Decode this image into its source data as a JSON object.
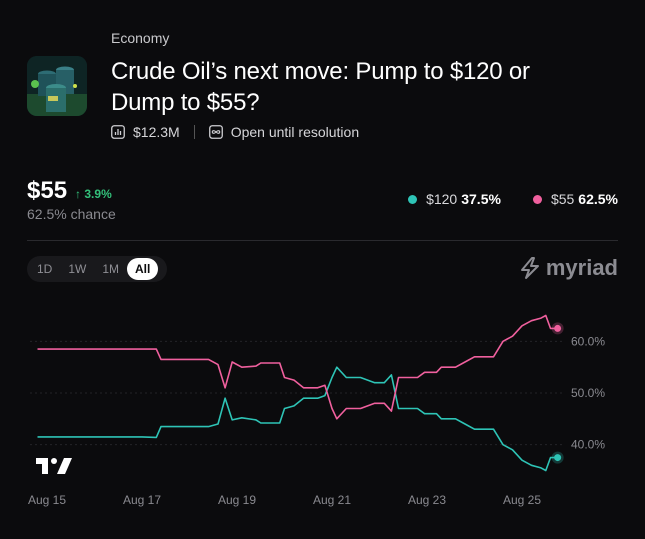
{
  "header": {
    "category": "Economy",
    "title": "Crude Oil’s next move: Pump to $120 or Dump to $55?",
    "volume": "$12.3M",
    "status": "Open until resolution"
  },
  "price": {
    "value": "$55",
    "change": "↑ 3.9%",
    "chance": "62.5% chance"
  },
  "legend": [
    {
      "label": "$120",
      "pct": "37.5%",
      "color": "#2ec4b6"
    },
    {
      "label": "$55",
      "pct": "62.5%",
      "color": "#f0609e"
    }
  ],
  "ranges": [
    "1D",
    "1W",
    "1M",
    "All"
  ],
  "active_range": "All",
  "brand": "myriad",
  "chart_data": {
    "type": "line",
    "x_labels": [
      "Aug 15",
      "Aug 17",
      "Aug 19",
      "Aug 21",
      "Aug 23",
      "Aug 25"
    ],
    "x_range": [
      15,
      25.75
    ],
    "ylim": [
      32,
      68
    ],
    "y_ticks": [
      "60.0%",
      "50.0%",
      "40.0%"
    ],
    "y_tick_values": [
      60,
      50,
      40
    ],
    "series": [
      {
        "name": "$120",
        "color": "#2ec4b6",
        "points": [
          [
            14.8,
            41.5
          ],
          [
            17.0,
            41.5
          ],
          [
            17.3,
            41.4
          ],
          [
            17.4,
            43.5
          ],
          [
            18.4,
            43.5
          ],
          [
            18.6,
            44
          ],
          [
            18.75,
            49
          ],
          [
            18.9,
            44.8
          ],
          [
            19.1,
            45.2
          ],
          [
            19.4,
            44.8
          ],
          [
            19.5,
            44.2
          ],
          [
            19.9,
            44.2
          ],
          [
            20.0,
            47
          ],
          [
            20.2,
            47.5
          ],
          [
            20.4,
            49
          ],
          [
            20.7,
            49
          ],
          [
            20.85,
            49.5
          ],
          [
            21.0,
            53
          ],
          [
            21.1,
            55
          ],
          [
            21.3,
            53
          ],
          [
            21.6,
            53
          ],
          [
            21.9,
            52
          ],
          [
            22.1,
            52
          ],
          [
            22.25,
            53.5
          ],
          [
            22.4,
            47
          ],
          [
            22.8,
            47
          ],
          [
            22.95,
            46
          ],
          [
            23.2,
            46
          ],
          [
            23.3,
            45
          ],
          [
            23.6,
            45
          ],
          [
            23.8,
            44
          ],
          [
            24.0,
            43
          ],
          [
            24.4,
            43
          ],
          [
            24.6,
            40
          ],
          [
            24.8,
            39
          ],
          [
            25.0,
            37
          ],
          [
            25.2,
            36
          ],
          [
            25.4,
            35.5
          ],
          [
            25.5,
            35
          ],
          [
            25.6,
            37.5
          ],
          [
            25.75,
            37.5
          ]
        ]
      },
      {
        "name": "$55",
        "color": "#f0609e",
        "points": [
          [
            14.8,
            58.5
          ],
          [
            17.0,
            58.5
          ],
          [
            17.3,
            58.5
          ],
          [
            17.4,
            56.5
          ],
          [
            18.4,
            56.5
          ],
          [
            18.6,
            55.5
          ],
          [
            18.75,
            51
          ],
          [
            18.9,
            56
          ],
          [
            19.1,
            55
          ],
          [
            19.4,
            55.2
          ],
          [
            19.5,
            55.8
          ],
          [
            19.9,
            55.8
          ],
          [
            20.0,
            53
          ],
          [
            20.2,
            52.5
          ],
          [
            20.4,
            51
          ],
          [
            20.7,
            51
          ],
          [
            20.85,
            51.5
          ],
          [
            21.0,
            47
          ],
          [
            21.1,
            45
          ],
          [
            21.3,
            47
          ],
          [
            21.6,
            47
          ],
          [
            21.9,
            48
          ],
          [
            22.1,
            48
          ],
          [
            22.25,
            46.5
          ],
          [
            22.4,
            53
          ],
          [
            22.8,
            53
          ],
          [
            22.95,
            54
          ],
          [
            23.2,
            54
          ],
          [
            23.3,
            55
          ],
          [
            23.6,
            55
          ],
          [
            23.8,
            56
          ],
          [
            24.0,
            57
          ],
          [
            24.4,
            57
          ],
          [
            24.6,
            60
          ],
          [
            24.8,
            61
          ],
          [
            25.0,
            63
          ],
          [
            25.2,
            64
          ],
          [
            25.4,
            64.5
          ],
          [
            25.5,
            65
          ],
          [
            25.6,
            62.5
          ],
          [
            25.75,
            62.5
          ]
        ]
      }
    ]
  }
}
